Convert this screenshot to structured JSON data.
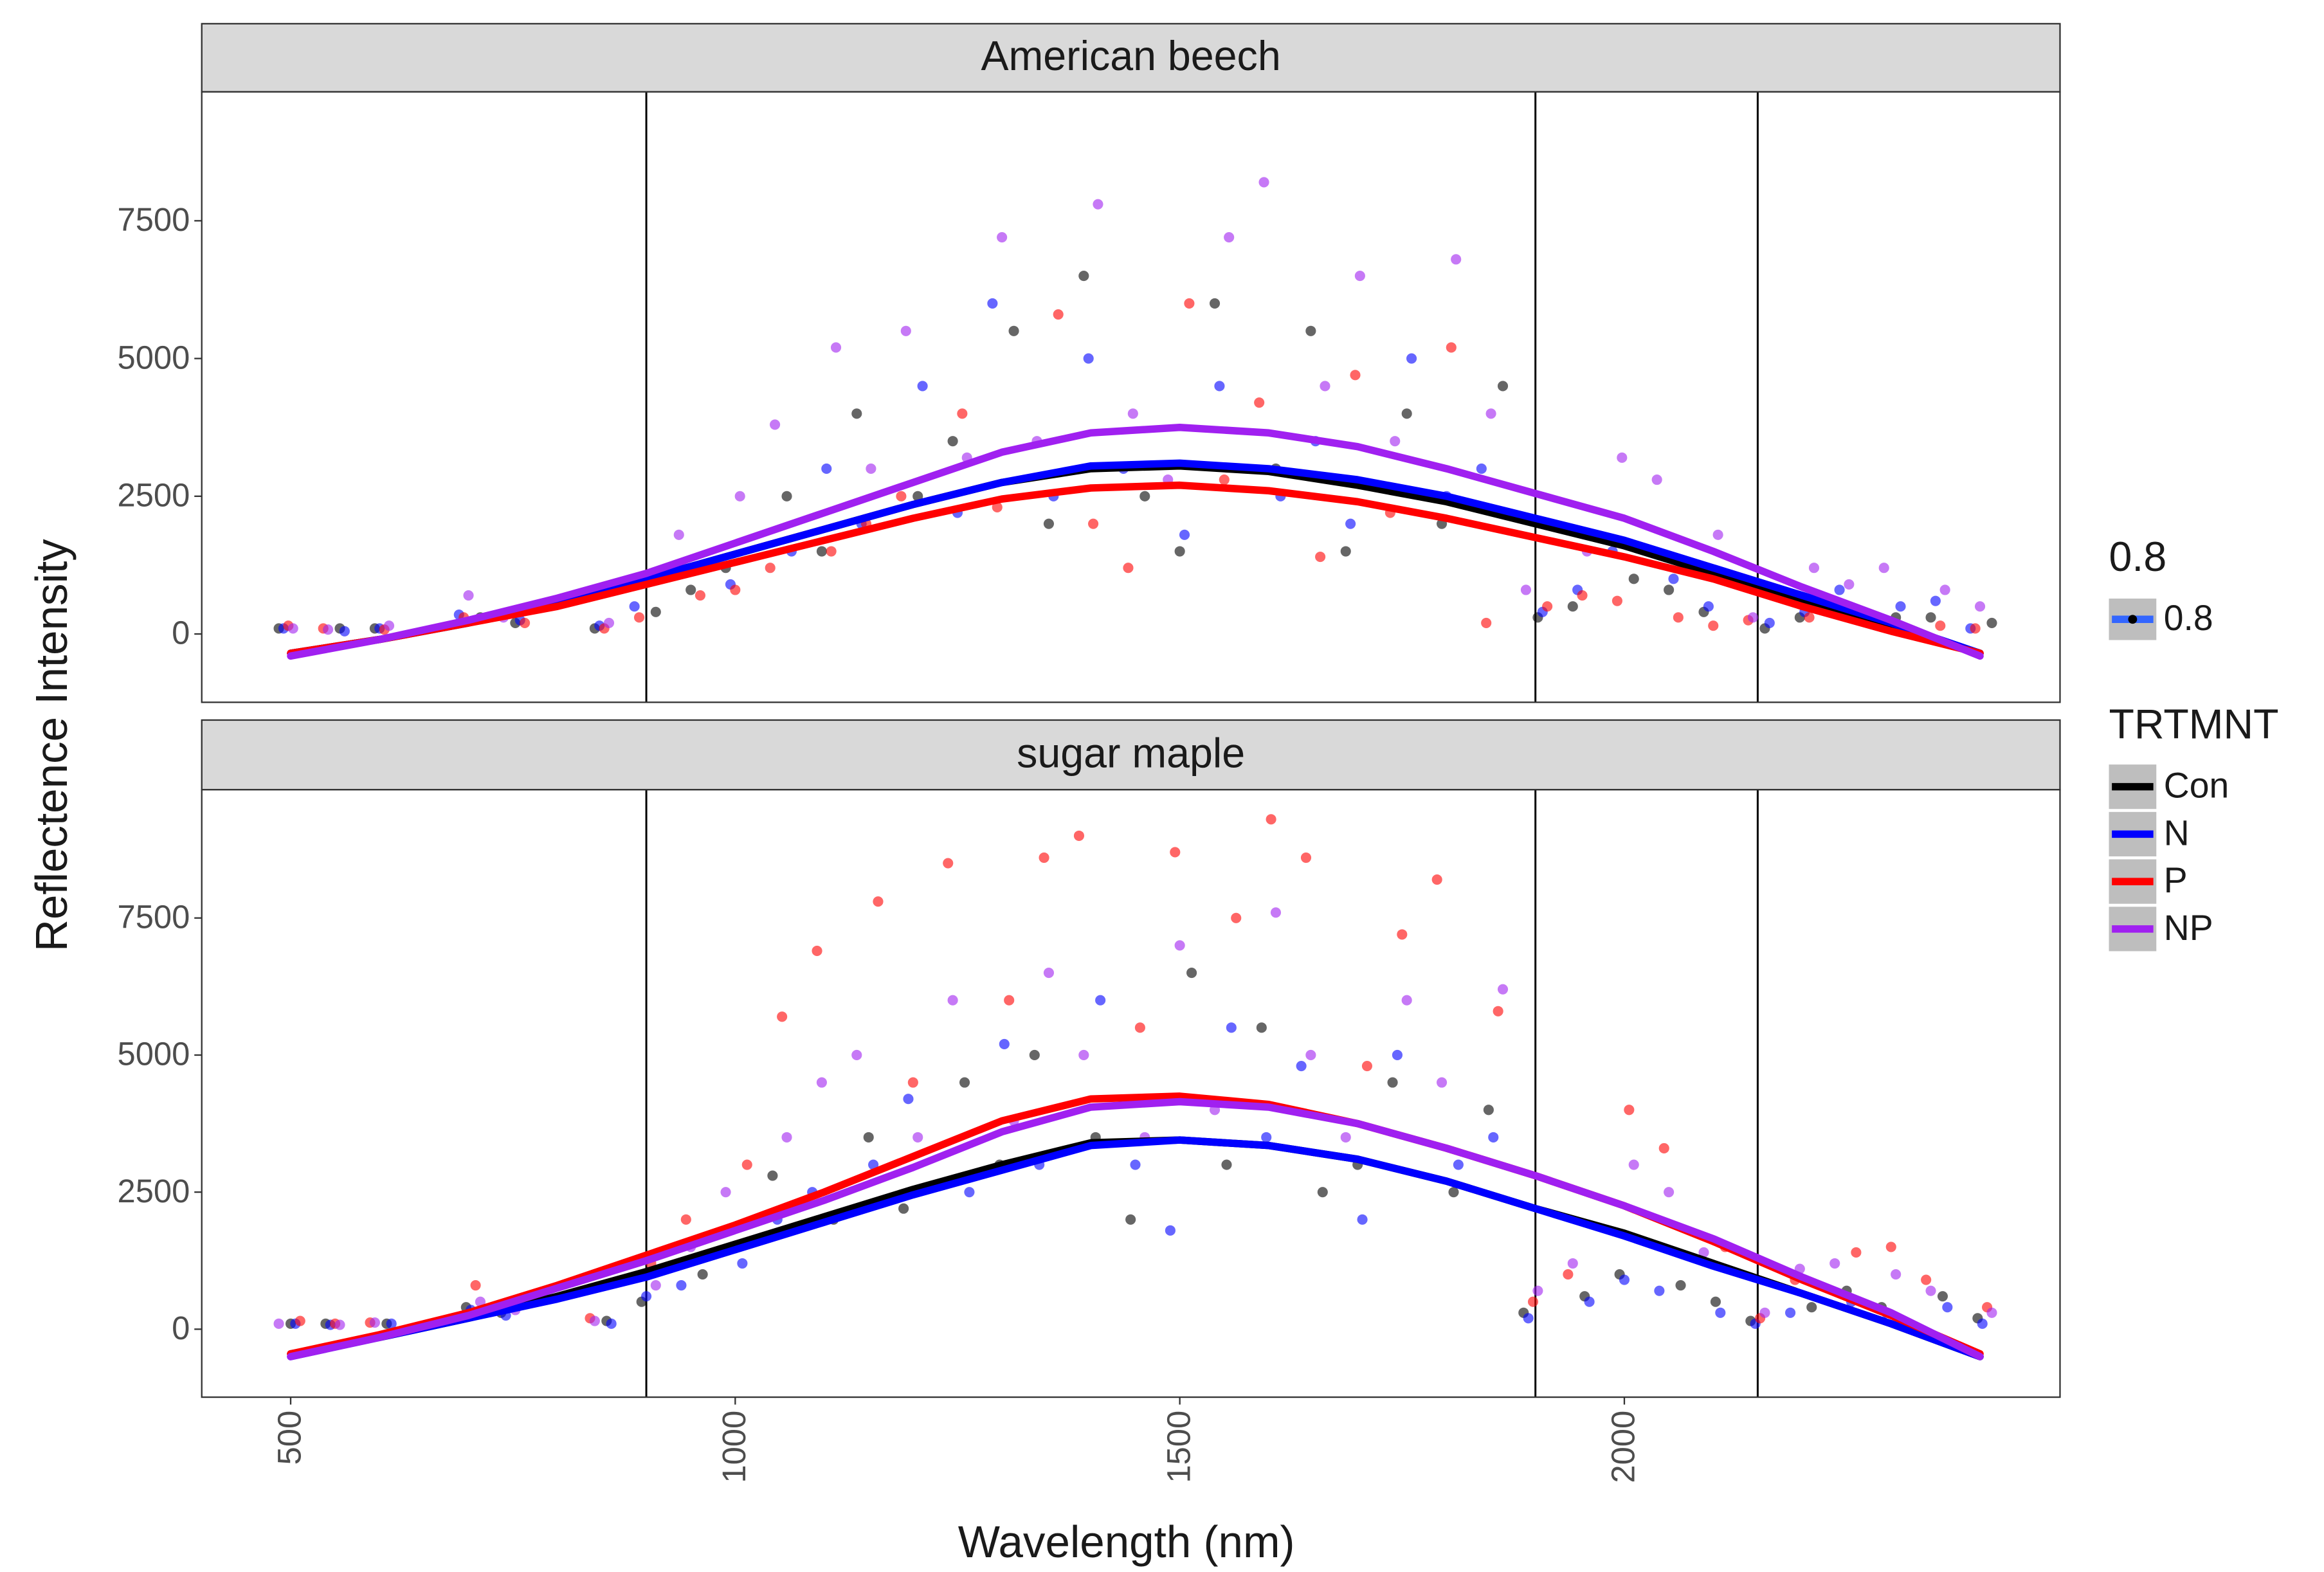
{
  "chart_data": [
    {
      "type": "scatter",
      "facet": "American beech",
      "ylabel": "Reflectence Intensity",
      "legend_title": "TRTMNT",
      "alpha_legend": {
        "title": "0.8",
        "labels": [
          "0.8"
        ]
      },
      "xlim": [
        400,
        2490
      ],
      "ylim": [
        -1240,
        9840
      ],
      "yticks": [
        0,
        2500,
        5000,
        7500
      ],
      "vlines": [
        900,
        1900,
        2150
      ],
      "line_x": [
        500,
        600,
        700,
        800,
        900,
        1000,
        1100,
        1200,
        1300,
        1400,
        1500,
        1600,
        1700,
        1800,
        1900,
        2000,
        2100,
        2200,
        2300,
        2400
      ],
      "point_x": [
        500,
        550,
        600,
        700,
        750,
        850,
        900,
        950,
        1000,
        1050,
        1100,
        1150,
        1200,
        1250,
        1300,
        1350,
        1400,
        1450,
        1500,
        1550,
        1600,
        1650,
        1700,
        1750,
        1800,
        1850,
        1900,
        1950,
        2000,
        2050,
        2100,
        2150,
        2200,
        2250,
        2300,
        2350,
        2400
      ],
      "series": [
        {
          "name": "Con",
          "color": "#000000",
          "values": [
            -350,
            -100,
            200,
            550,
            1000,
            1450,
            1900,
            2350,
            2750,
            3000,
            3050,
            2950,
            2700,
            2400,
            2000,
            1600,
            1100,
            600,
            150,
            -350
          ],
          "points": [
            100,
            100,
            100,
            300,
            200,
            100,
            400,
            800,
            1200,
            2500,
            1500,
            4000,
            2500,
            3500,
            5500,
            2000,
            6500,
            2500,
            1500,
            6000,
            3000,
            5500,
            1500,
            4000,
            2000,
            4500,
            300,
            500,
            1000,
            800,
            400,
            100,
            300,
            400,
            300,
            300,
            200
          ]
        },
        {
          "name": "N",
          "color": "#0000ff",
          "values": [
            -350,
            -100,
            200,
            550,
            1000,
            1450,
            1900,
            2350,
            2750,
            3050,
            3100,
            3000,
            2800,
            2500,
            2100,
            1700,
            1200,
            700,
            200,
            -350
          ],
          "points": [
            100,
            50,
            100,
            350,
            250,
            150,
            500,
            1200,
            900,
            1500,
            3000,
            2000,
            4500,
            2200,
            6000,
            2500,
            5000,
            3000,
            1800,
            4500,
            2500,
            3500,
            2000,
            5000,
            2500,
            3000,
            400,
            800,
            1500,
            1000,
            500,
            200,
            400,
            800,
            500,
            600,
            100
          ]
        },
        {
          "name": "P",
          "color": "#ff0000",
          "values": [
            -350,
            -100,
            200,
            500,
            900,
            1300,
            1700,
            2100,
            2450,
            2650,
            2700,
            2600,
            2400,
            2100,
            1750,
            1400,
            1000,
            500,
            50,
            -350
          ],
          "points": [
            150,
            100,
            80,
            300,
            200,
            100,
            300,
            700,
            800,
            1200,
            1500,
            2000,
            2500,
            4000,
            2300,
            5800,
            2000,
            1200,
            6000,
            2800,
            4200,
            1400,
            4700,
            2200,
            5200,
            200,
            500,
            700,
            600,
            300,
            150,
            250,
            300,
            400,
            200,
            150,
            100
          ]
        },
        {
          "name": "NP",
          "color": "#a020f0",
          "values": [
            -400,
            -100,
            250,
            650,
            1100,
            1650,
            2200,
            2750,
            3300,
            3650,
            3750,
            3650,
            3400,
            3000,
            2550,
            2100,
            1500,
            850,
            250,
            -400
          ],
          "points": [
            100,
            80,
            150,
            700,
            300,
            200,
            1000,
            1800,
            2500,
            3800,
            5200,
            3000,
            5500,
            3200,
            7200,
            3500,
            7800,
            4000,
            2800,
            7200,
            8200,
            4500,
            6500,
            3500,
            6800,
            4000,
            800,
            1500,
            3200,
            2800,
            1800,
            300,
            1200,
            900,
            1200,
            800,
            500
          ]
        }
      ]
    },
    {
      "type": "scatter",
      "facet": "sugar maple",
      "xlabel": "Wavelength (nm)",
      "xlim": [
        400,
        2490
      ],
      "xticks": [
        500,
        1000,
        1500,
        2000
      ],
      "ylim": [
        -1240,
        9840
      ],
      "yticks": [
        0,
        2500,
        5000,
        7500
      ],
      "vlines": [
        900,
        1900,
        2150
      ],
      "line_x": [
        500,
        600,
        700,
        800,
        900,
        1000,
        1100,
        1200,
        1300,
        1400,
        1500,
        1600,
        1700,
        1800,
        1900,
        2000,
        2100,
        2200,
        2300,
        2400
      ],
      "point_x": [
        500,
        550,
        600,
        700,
        750,
        850,
        900,
        950,
        1000,
        1050,
        1100,
        1150,
        1200,
        1250,
        1300,
        1350,
        1400,
        1450,
        1500,
        1550,
        1600,
        1650,
        1700,
        1750,
        1800,
        1850,
        1900,
        1950,
        2000,
        2050,
        2100,
        2150,
        2200,
        2250,
        2300,
        2350,
        2400
      ],
      "series": [
        {
          "color": "#000000",
          "values": [
            -450,
            -150,
            200,
            600,
            1050,
            1550,
            2050,
            2550,
            3000,
            3400,
            3450,
            3350,
            3100,
            2700,
            2200,
            1750,
            1200,
            650,
            100,
            -500
          ],
          "points": [
            100,
            100,
            100,
            400,
            300,
            150,
            500,
            1000,
            1500,
            2800,
            2000,
            3500,
            2200,
            4500,
            3000,
            5000,
            3500,
            2000,
            6500,
            3000,
            5500,
            2500,
            3000,
            4500,
            2500,
            4000,
            300,
            600,
            1000,
            800,
            500,
            150,
            400,
            700,
            400,
            600,
            200
          ]
        },
        {
          "color": "#0000ff",
          "values": [
            -500,
            -150,
            200,
            550,
            950,
            1450,
            1950,
            2450,
            2900,
            3350,
            3450,
            3350,
            3100,
            2700,
            2200,
            1700,
            1150,
            650,
            100,
            -500
          ],
          "points": [
            100,
            80,
            100,
            350,
            250,
            100,
            600,
            800,
            1200,
            2000,
            2500,
            3000,
            4200,
            2500,
            5200,
            3000,
            6000,
            3000,
            1800,
            5500,
            3500,
            4800,
            2000,
            5000,
            3000,
            3500,
            200,
            500,
            900,
            700,
            300,
            100,
            300,
            500,
            300,
            400,
            100
          ]
        },
        {
          "color": "#ff0000",
          "values": [
            -450,
            -100,
            300,
            800,
            1350,
            1900,
            2500,
            3150,
            3800,
            4200,
            4250,
            4100,
            3750,
            3300,
            2800,
            2250,
            1600,
            900,
            250,
            -450
          ],
          "points": [
            150,
            100,
            120,
            800,
            500,
            200,
            1200,
            2000,
            3000,
            5700,
            6900,
            7800,
            4500,
            8500,
            6000,
            8600,
            9000,
            5500,
            8700,
            7500,
            9300,
            8600,
            4800,
            7200,
            8200,
            5800,
            500,
            1000,
            4000,
            3300,
            1500,
            200,
            900,
            1400,
            1500,
            900,
            400
          ]
        },
        {
          "color": "#a020f0",
          "values": [
            -500,
            -150,
            250,
            750,
            1250,
            1800,
            2350,
            2950,
            3600,
            4050,
            4150,
            4050,
            3750,
            3300,
            2800,
            2250,
            1650,
            950,
            300,
            -500
          ],
          "points": [
            100,
            80,
            120,
            500,
            350,
            150,
            800,
            1500,
            2500,
            3500,
            4500,
            5000,
            3500,
            6000,
            3800,
            6500,
            5000,
            3500,
            7000,
            4000,
            7600,
            5000,
            3500,
            6000,
            4500,
            6200,
            700,
            1200,
            3000,
            2500,
            1400,
            300,
            1100,
            1200,
            1000,
            700,
            300
          ]
        }
      ]
    }
  ]
}
